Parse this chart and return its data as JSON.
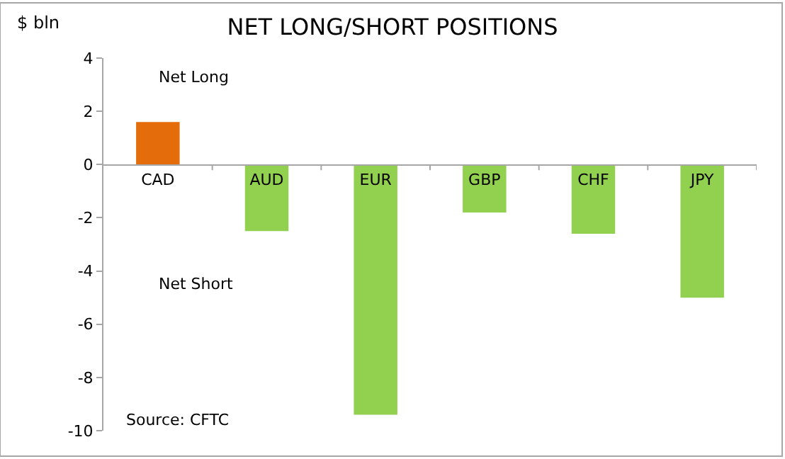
{
  "chart_data": {
    "type": "bar",
    "title": "NET LONG/SHORT POSITIONS",
    "ylabel": "$ bln",
    "categories": [
      "CAD",
      "AUD",
      "EUR",
      "GBP",
      "CHF",
      "JPY"
    ],
    "values": [
      1.6,
      -2.5,
      -9.4,
      -1.8,
      -2.6,
      -5.0
    ],
    "colors": [
      "#e46c0a",
      "#92d050",
      "#92d050",
      "#92d050",
      "#92d050",
      "#92d050"
    ],
    "ylim": [
      -10,
      4
    ],
    "yticks": [
      -10,
      -8,
      -6,
      -4,
      -2,
      0,
      2,
      4
    ],
    "annotations": [
      "Net Long",
      "Net Short",
      "Source: CFTC"
    ]
  }
}
